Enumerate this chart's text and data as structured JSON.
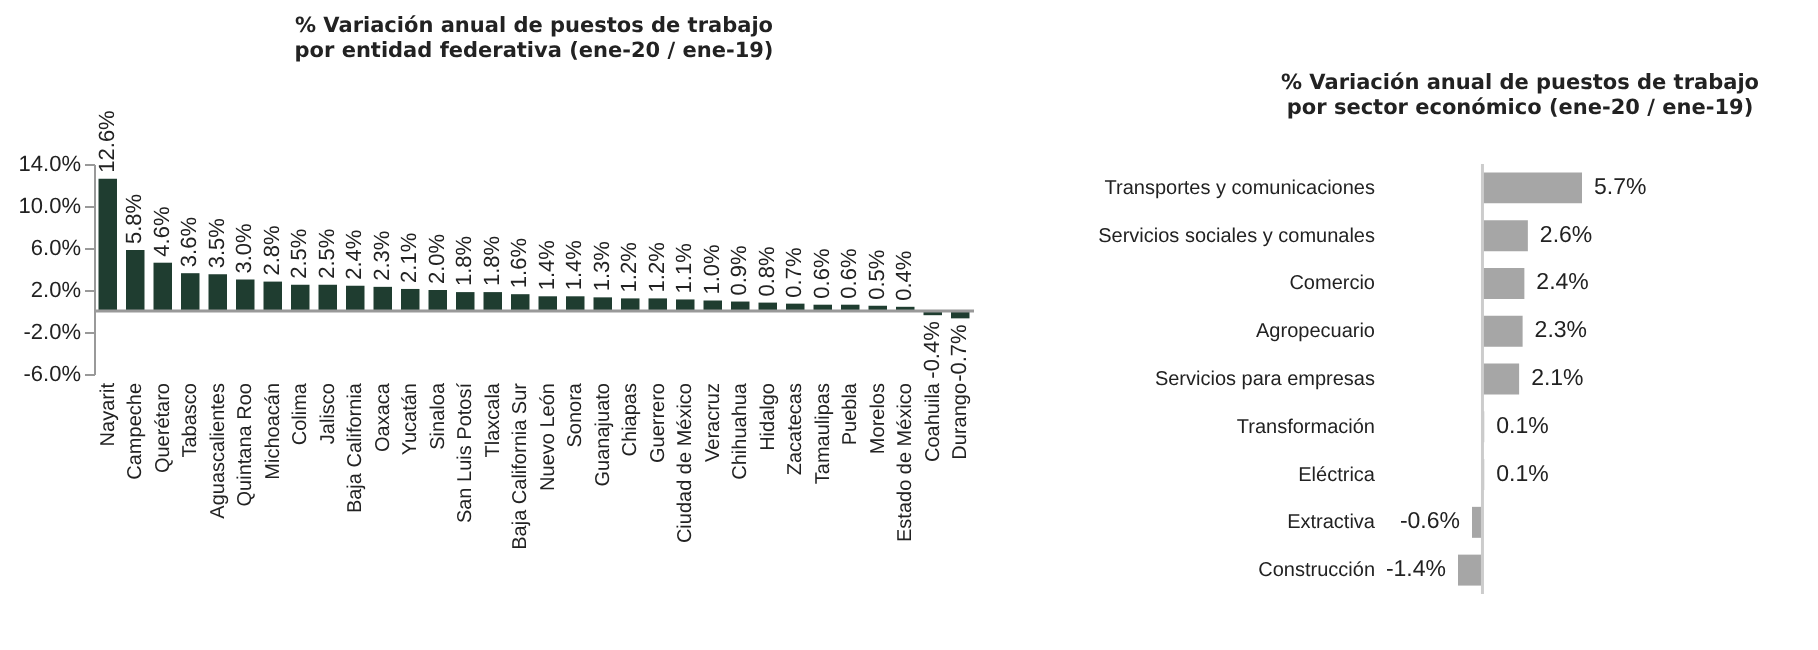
{
  "chart_data": [
    {
      "type": "bar",
      "title": "% Variación anual de puestos de trabajo\npor entidad federativa (ene-20 / ene-19)",
      "categories": [
        "Nayarit",
        "Campeche",
        "Querétaro",
        "Tabasco",
        "Aguascalientes",
        "Quintana Roo",
        "Michoacán",
        "Colima",
        "Jalisco",
        "Baja California",
        "Oaxaca",
        "Yucatán",
        "Sinaloa",
        "San Luis Potosí",
        "Tlaxcala",
        "Baja California Sur",
        "Nuevo León",
        "Sonora",
        "Guanajuato",
        "Chiapas",
        "Guerrero",
        "Ciudad de México",
        "Veracruz",
        "Chihuahua",
        "Hidalgo",
        "Zacatecas",
        "Tamaulipas",
        "Puebla",
        "Morelos",
        "Estado de México",
        "Coahuila",
        "Durango"
      ],
      "values": [
        12.6,
        5.8,
        4.6,
        3.6,
        3.5,
        3.0,
        2.8,
        2.5,
        2.5,
        2.4,
        2.3,
        2.1,
        2.0,
        1.8,
        1.8,
        1.6,
        1.4,
        1.4,
        1.3,
        1.2,
        1.2,
        1.1,
        1.0,
        0.9,
        0.8,
        0.7,
        0.6,
        0.6,
        0.5,
        0.4,
        -0.4,
        -0.7
      ],
      "value_labels": [
        "12.6%",
        "5.8%",
        "4.6%",
        "3.6%",
        "3.5%",
        "3.0%",
        "2.8%",
        "2.5%",
        "2.5%",
        "2.4%",
        "2.3%",
        "2.1%",
        "2.0%",
        "1.8%",
        "1.8%",
        "1.6%",
        "1.4%",
        "1.4%",
        "1.3%",
        "1.2%",
        "1.2%",
        "1.1%",
        "1.0%",
        "0.9%",
        "0.8%",
        "0.7%",
        "0.6%",
        "0.6%",
        "0.5%",
        "0.4%",
        "-0.4%",
        "-0.7%"
      ],
      "color": "#1f3d30",
      "ylim": [
        -6,
        14
      ],
      "yticks": [
        {
          "value": -6,
          "label": "-6.0%"
        },
        {
          "value": -2,
          "label": "-2.0%"
        },
        {
          "value": 2,
          "label": "2.0%"
        },
        {
          "value": 6,
          "label": "6.0%"
        },
        {
          "value": 10,
          "label": "10.0%"
        },
        {
          "value": 14,
          "label": "14.0%"
        }
      ]
    },
    {
      "type": "bar",
      "orientation": "horizontal",
      "title": "% Variación anual de puestos de trabajo\npor sector económico (ene-20 / ene-19)",
      "categories": [
        "Transportes y comunicaciones",
        "Servicios sociales y comunales",
        "Comercio",
        "Agropecuario",
        "Servicios para empresas",
        "Transformación",
        "Eléctrica",
        "Extractiva",
        "Construcción"
      ],
      "values": [
        5.7,
        2.6,
        2.4,
        2.3,
        2.1,
        0.1,
        0.1,
        -0.6,
        -1.4
      ],
      "value_labels": [
        "5.7%",
        "2.6%",
        "2.4%",
        "2.3%",
        "2.1%",
        "0.1%",
        "0.1%",
        "-0.6%",
        "-1.4%"
      ],
      "color": "#a6a6a6",
      "tick_labels": "y"
    }
  ]
}
